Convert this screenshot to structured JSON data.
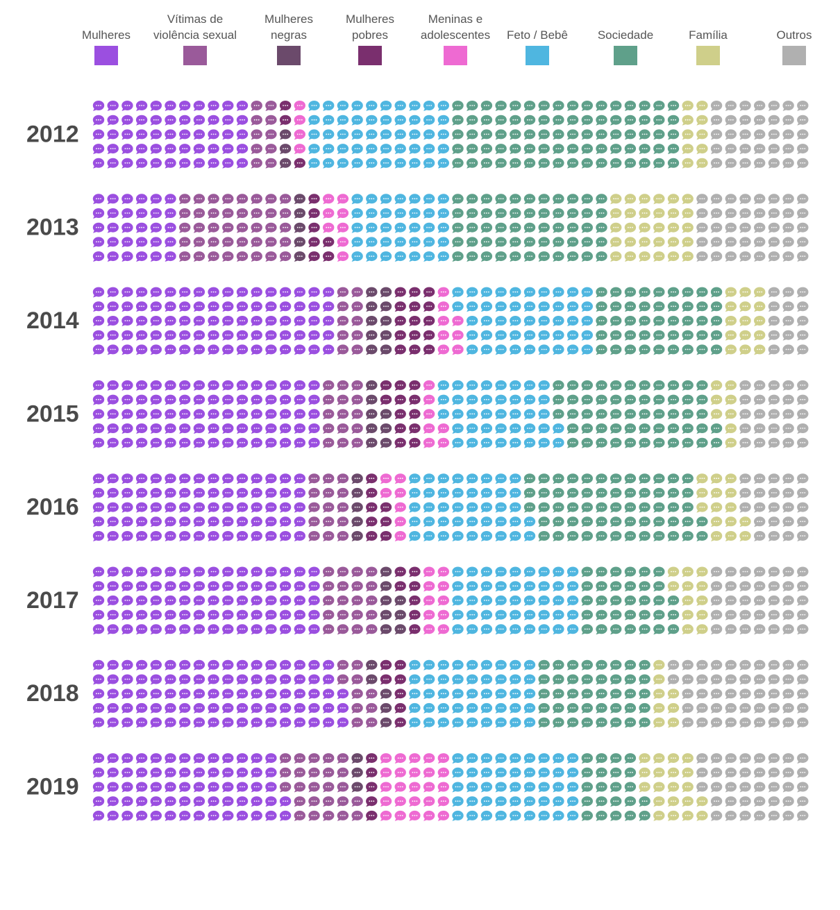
{
  "chart_data": {
    "type": "waffle",
    "categories": [
      "2012",
      "2013",
      "2014",
      "2015",
      "2016",
      "2017",
      "2018",
      "2019"
    ],
    "series": [
      {
        "name": "Mulheres",
        "color": "#9b4fe0",
        "values": [
          55,
          30,
          85,
          80,
          75,
          80,
          88,
          67
        ]
      },
      {
        "name": "Vítimas de violência sexual",
        "color": "#9a5a9a",
        "values": [
          10,
          40,
          10,
          15,
          15,
          20,
          10,
          25
        ]
      },
      {
        "name": "Mulheres negras",
        "color": "#6b4a6b",
        "values": [
          3,
          5,
          10,
          8,
          5,
          8,
          5,
          3
        ]
      },
      {
        "name": "Mulheres pobres",
        "color": "#7a2f6e",
        "values": [
          3,
          7,
          15,
          12,
          8,
          7,
          7,
          5
        ]
      },
      {
        "name": "Meninas e adolescentes",
        "color": "#ee6ad2",
        "values": [
          4,
          8,
          8,
          7,
          7,
          10,
          0,
          25
        ]
      },
      {
        "name": "Feto / Bebê",
        "color": "#4fb6e0",
        "values": [
          50,
          35,
          47,
          40,
          42,
          45,
          45,
          45
        ]
      },
      {
        "name": "Sociedade",
        "color": "#5fa08a",
        "values": [
          80,
          55,
          45,
          55,
          60,
          33,
          40,
          22
        ]
      },
      {
        "name": "Família",
        "color": "#cfcf8a",
        "values": [
          10,
          30,
          15,
          8,
          15,
          12,
          8,
          20
        ]
      },
      {
        "name": "Outros",
        "color": "#b0b0b0",
        "values": [
          35,
          40,
          15,
          25,
          23,
          35,
          47,
          38
        ]
      }
    ]
  }
}
